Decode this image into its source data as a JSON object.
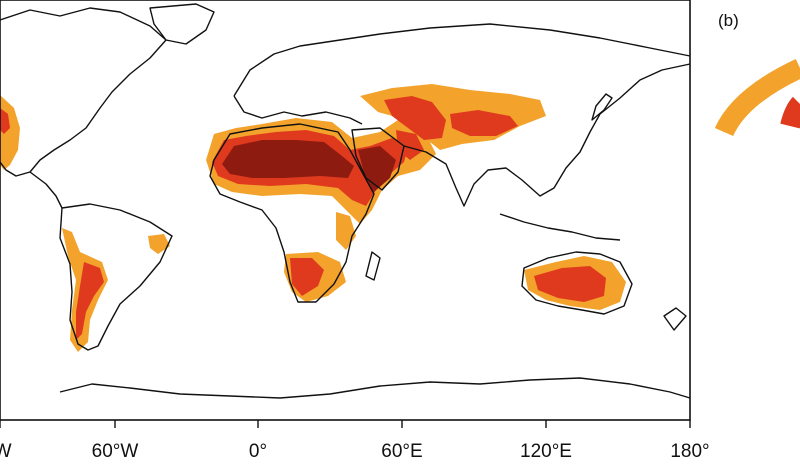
{
  "map": {
    "projection": "equirectangular",
    "colors": {
      "class_light": "#f3a32c",
      "class_medium": "#e03a1e",
      "class_dark": "#8e1b10",
      "coastline": "#111111",
      "frame": "#111111"
    },
    "x_ticks": [
      "°W",
      "60°W",
      "0°",
      "60°E",
      "120°E",
      "180°"
    ]
  },
  "panel_b": {
    "label": "(b)",
    "colors": [
      "#f3a32c",
      "#e03a1e"
    ]
  }
}
